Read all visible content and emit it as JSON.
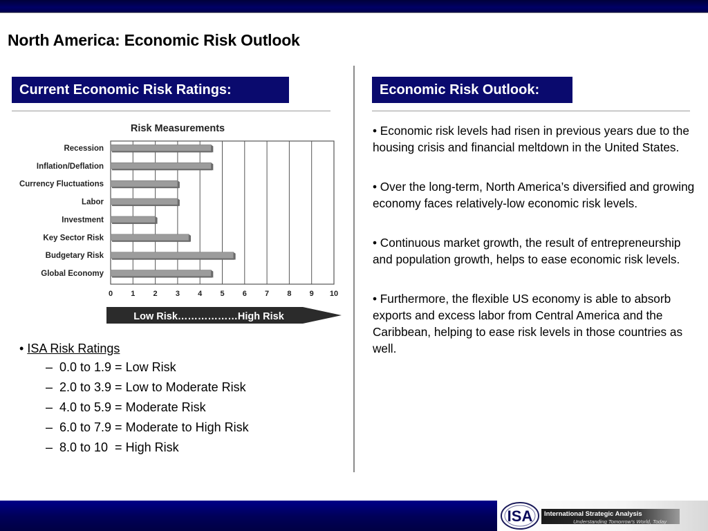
{
  "slide": {
    "title": "North America: Economic Risk Outlook"
  },
  "left_panel": {
    "header": "Current Economic Risk Ratings:",
    "risk_arrow_label": "Low Risk………………High Risk",
    "ratings": {
      "bullet": "•",
      "heading": "ISA Risk Ratings",
      "dash": "–",
      "items": [
        "0.0 to 1.9 = Low Risk",
        "2.0 to 3.9 = Low to Moderate Risk",
        "4.0 to 5.9 = Moderate Risk",
        "6.0 to 7.9 = Moderate to High Risk",
        "8.0 to 10  = High Risk"
      ]
    }
  },
  "right_panel": {
    "header": "Economic Risk Outlook:",
    "paragraphs": [
      "• Economic risk levels had risen in previous years due to the housing crisis and financial meltdown in the United States.",
      "• Over the long-term, North America’s diversified and growing economy faces relatively-low economic risk levels.",
      "• Continuous market growth, the result of entrepreneurship and population growth, helps to ease economic risk levels.",
      "• Furthermore, the flexible US economy is able to absorb exports and excess labor from Central America and the Caribbean, helping to ease risk levels in those countries as well."
    ]
  },
  "footer": {
    "logo_text": "ISA",
    "org_name": "International Strategic Analysis",
    "tagline": "Understanding Tomorrow's World, Today"
  },
  "colors": {
    "header_bg": "#0a0a6e",
    "bar_fill": "#9c9c9c",
    "bar_side": "#6a6a6a"
  },
  "chart_data": {
    "type": "bar",
    "orientation": "horizontal",
    "title": "Risk Measurements",
    "categories": [
      "Recession",
      "Inflation/Deflation",
      "Currency Fluctuations",
      "Labor",
      "Investment",
      "Key Sector Risk",
      "Budgetary Risk",
      "Global Economy"
    ],
    "values": [
      4.5,
      4.5,
      3,
      3,
      2,
      3.5,
      5.5,
      4.5
    ],
    "xlim": [
      0,
      10
    ],
    "xticks": [
      "0",
      "1",
      "2",
      "3",
      "4",
      "5",
      "6",
      "7",
      "8",
      "9",
      "10"
    ],
    "grid": "vertical"
  }
}
